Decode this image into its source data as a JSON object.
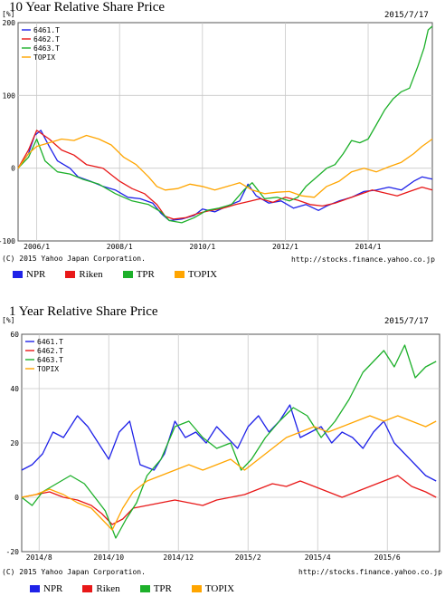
{
  "chart_data": [
    {
      "type": "line",
      "title": "10 Year Relative Share Price",
      "date": "2015/7/17",
      "unit": "[%]",
      "credit": "(C) 2015 Yahoo Japan Corporation.",
      "source": "http://stocks.finance.yahoo.co.jp",
      "x_tick_labels": [
        "2006/1",
        "2008/1",
        "2010/1",
        "2012/1",
        "2014/1"
      ],
      "x_tick_positions": [
        2006.0,
        2008.0,
        2010.0,
        2012.0,
        2014.0
      ],
      "xlim": [
        2005.55,
        2015.55
      ],
      "y_ticks": [
        200,
        100,
        0,
        -100
      ],
      "ylim": [
        -100,
        200
      ],
      "grid": true,
      "legend_position": "top-left",
      "series": [
        {
          "name": "6461.T",
          "legend_label": "NPR",
          "color": "#1f22e8",
          "x": [
            2005.55,
            2005.8,
            2005.95,
            2006.1,
            2006.3,
            2006.5,
            2006.8,
            2007.0,
            2007.3,
            2007.6,
            2007.9,
            2008.2,
            2008.5,
            2008.8,
            2009.0,
            2009.2,
            2009.5,
            2009.8,
            2010.0,
            2010.3,
            2010.6,
            2010.9,
            2011.1,
            2011.3,
            2011.6,
            2011.9,
            2012.2,
            2012.5,
            2012.8,
            2013.0,
            2013.3,
            2013.6,
            2013.9,
            2014.2,
            2014.5,
            2014.8,
            2015.1,
            2015.3,
            2015.55
          ],
          "y": [
            0,
            20,
            45,
            52,
            30,
            10,
            0,
            -12,
            -18,
            -25,
            -30,
            -40,
            -42,
            -48,
            -62,
            -72,
            -70,
            -65,
            -56,
            -60,
            -52,
            -45,
            -22,
            -38,
            -48,
            -45,
            -55,
            -50,
            -58,
            -52,
            -45,
            -40,
            -32,
            -30,
            -26,
            -30,
            -18,
            -12,
            -15
          ]
        },
        {
          "name": "6462.T",
          "legend_label": "Riken",
          "color": "#e81818",
          "x": [
            2005.55,
            2005.8,
            2006.0,
            2006.3,
            2006.6,
            2006.9,
            2007.2,
            2007.6,
            2008.0,
            2008.3,
            2008.6,
            2008.9,
            2009.1,
            2009.3,
            2009.6,
            2009.9,
            2010.2,
            2010.5,
            2010.8,
            2011.1,
            2011.4,
            2011.7,
            2012.0,
            2012.3,
            2012.6,
            2012.9,
            2013.2,
            2013.5,
            2013.8,
            2014.1,
            2014.4,
            2014.7,
            2015.0,
            2015.3,
            2015.55
          ],
          "y": [
            0,
            25,
            52,
            40,
            25,
            18,
            5,
            0,
            -18,
            -28,
            -35,
            -50,
            -66,
            -70,
            -68,
            -62,
            -58,
            -55,
            -50,
            -46,
            -42,
            -47,
            -40,
            -44,
            -50,
            -52,
            -48,
            -42,
            -36,
            -30,
            -34,
            -38,
            -32,
            -26,
            -30
          ]
        },
        {
          "name": "6463.T",
          "legend_label": "TPR",
          "color": "#1db02a",
          "x": [
            2005.55,
            2005.8,
            2006.0,
            2006.2,
            2006.5,
            2006.8,
            2007.1,
            2007.5,
            2007.9,
            2008.3,
            2008.7,
            2009.0,
            2009.2,
            2009.5,
            2009.8,
            2010.1,
            2010.4,
            2010.7,
            2011.0,
            2011.2,
            2011.5,
            2011.8,
            2012.1,
            2012.3,
            2012.5,
            2012.8,
            2013.0,
            2013.2,
            2013.4,
            2013.6,
            2013.8,
            2014.0,
            2014.2,
            2014.4,
            2014.6,
            2014.8,
            2015.0,
            2015.2,
            2015.35,
            2015.45,
            2015.55
          ],
          "y": [
            0,
            15,
            40,
            10,
            -5,
            -8,
            -15,
            -22,
            -35,
            -45,
            -50,
            -60,
            -72,
            -75,
            -68,
            -58,
            -55,
            -50,
            -30,
            -20,
            -42,
            -40,
            -45,
            -40,
            -25,
            -10,
            0,
            5,
            20,
            38,
            35,
            40,
            60,
            80,
            95,
            105,
            110,
            140,
            165,
            190,
            195
          ]
        },
        {
          "name": "TOPIX",
          "legend_label": "TOPIX",
          "color": "#ffa500",
          "x": [
            2005.55,
            2005.8,
            2006.0,
            2006.3,
            2006.6,
            2006.9,
            2007.2,
            2007.5,
            2007.8,
            2008.1,
            2008.4,
            2008.7,
            2008.9,
            2009.1,
            2009.4,
            2009.7,
            2010.0,
            2010.3,
            2010.6,
            2010.9,
            2011.2,
            2011.5,
            2011.8,
            2012.1,
            2012.4,
            2012.7,
            2013.0,
            2013.3,
            2013.6,
            2013.9,
            2014.2,
            2014.5,
            2014.8,
            2015.1,
            2015.3,
            2015.55
          ],
          "y": [
            0,
            20,
            30,
            35,
            40,
            38,
            45,
            40,
            32,
            15,
            5,
            -12,
            -25,
            -30,
            -28,
            -22,
            -25,
            -30,
            -25,
            -20,
            -30,
            -35,
            -33,
            -32,
            -38,
            -40,
            -25,
            -18,
            -5,
            0,
            -5,
            2,
            8,
            20,
            30,
            40
          ]
        }
      ]
    },
    {
      "type": "line",
      "title": "1 Year Relative Share Price",
      "date": "2015/7/17",
      "unit": "[%]",
      "credit": "(C) 2015 Yahoo Japan Corporation.",
      "source": "http://stocks.finance.yahoo.co.jp",
      "x_tick_labels": [
        "2014/8",
        "2014/10",
        "2014/12",
        "2015/2",
        "2015/4",
        "2015/6"
      ],
      "x_tick_positions": [
        0.5,
        2.5,
        4.5,
        6.5,
        8.5,
        10.5
      ],
      "xlim": [
        0,
        12
      ],
      "y_ticks": [
        60,
        40,
        20,
        0,
        -20
      ],
      "ylim": [
        -20,
        60
      ],
      "grid": true,
      "legend_position": "top-left",
      "series": [
        {
          "name": "6461.T",
          "legend_label": "NPR",
          "color": "#1f22e8",
          "x": [
            0,
            0.3,
            0.6,
            0.9,
            1.2,
            1.6,
            1.9,
            2.2,
            2.5,
            2.8,
            3.1,
            3.4,
            3.8,
            4.1,
            4.4,
            4.7,
            5.0,
            5.3,
            5.6,
            5.9,
            6.2,
            6.5,
            6.8,
            7.1,
            7.4,
            7.7,
            8.0,
            8.3,
            8.6,
            8.9,
            9.2,
            9.5,
            9.8,
            10.1,
            10.4,
            10.7,
            11.0,
            11.3,
            11.6,
            11.9
          ],
          "y": [
            10,
            12,
            16,
            24,
            22,
            30,
            26,
            20,
            14,
            24,
            28,
            12,
            10,
            16,
            28,
            22,
            24,
            20,
            26,
            22,
            18,
            26,
            30,
            24,
            28,
            34,
            22,
            24,
            26,
            20,
            24,
            22,
            18,
            24,
            28,
            20,
            16,
            12,
            8,
            6
          ]
        },
        {
          "name": "6462.T",
          "legend_label": "Riken",
          "color": "#e81818",
          "x": [
            0,
            0.4,
            0.8,
            1.2,
            1.6,
            2.0,
            2.3,
            2.6,
            2.9,
            3.2,
            3.6,
            4.0,
            4.4,
            4.8,
            5.2,
            5.6,
            6.0,
            6.4,
            6.8,
            7.2,
            7.6,
            8.0,
            8.4,
            8.8,
            9.2,
            9.6,
            10.0,
            10.4,
            10.8,
            11.2,
            11.6,
            11.9
          ],
          "y": [
            0,
            1,
            2,
            0,
            -1,
            -3,
            -6,
            -10,
            -8,
            -4,
            -3,
            -2,
            -1,
            -2,
            -3,
            -1,
            0,
            1,
            3,
            5,
            4,
            6,
            4,
            2,
            0,
            2,
            4,
            6,
            8,
            4,
            2,
            0
          ]
        },
        {
          "name": "6463.T",
          "legend_label": "TPR",
          "color": "#1db02a",
          "x": [
            0,
            0.3,
            0.6,
            1.0,
            1.4,
            1.8,
            2.1,
            2.4,
            2.7,
            3.0,
            3.3,
            3.6,
            4.0,
            4.4,
            4.8,
            5.2,
            5.6,
            6.0,
            6.3,
            6.6,
            7.0,
            7.4,
            7.8,
            8.2,
            8.6,
            9.0,
            9.4,
            9.8,
            10.1,
            10.4,
            10.7,
            11.0,
            11.3,
            11.6,
            11.9
          ],
          "y": [
            0,
            -3,
            2,
            5,
            8,
            5,
            0,
            -5,
            -15,
            -8,
            -2,
            8,
            14,
            26,
            28,
            22,
            18,
            20,
            10,
            14,
            22,
            28,
            33,
            30,
            22,
            28,
            36,
            46,
            50,
            54,
            48,
            56,
            44,
            48,
            50
          ]
        },
        {
          "name": "TOPIX",
          "legend_label": "TOPIX",
          "color": "#ffa500",
          "x": [
            0,
            0.4,
            0.8,
            1.2,
            1.6,
            2.0,
            2.3,
            2.6,
            2.9,
            3.2,
            3.6,
            4.0,
            4.4,
            4.8,
            5.2,
            5.6,
            6.0,
            6.4,
            6.8,
            7.2,
            7.6,
            8.0,
            8.4,
            8.8,
            9.2,
            9.6,
            10.0,
            10.4,
            10.8,
            11.2,
            11.6,
            11.9
          ],
          "y": [
            0,
            1,
            3,
            1,
            -2,
            -4,
            -8,
            -12,
            -4,
            2,
            6,
            8,
            10,
            12,
            10,
            12,
            14,
            10,
            14,
            18,
            22,
            24,
            26,
            24,
            26,
            28,
            30,
            28,
            30,
            28,
            26,
            28
          ]
        }
      ]
    }
  ]
}
